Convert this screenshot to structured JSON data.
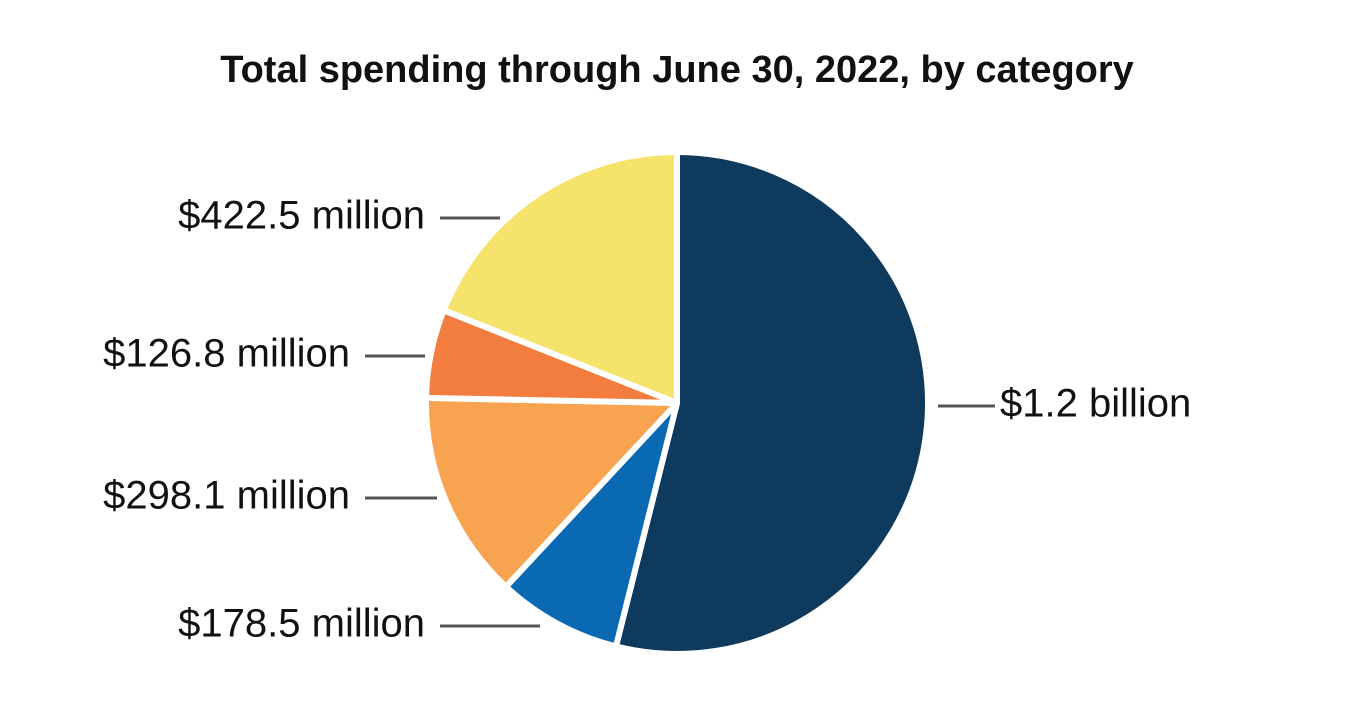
{
  "chart_data": {
    "type": "pie",
    "title": "Total spending through June 30, 2022, by category",
    "values": [
      1200000000,
      178500000,
      298100000,
      126800000,
      422500000
    ],
    "value_labels": [
      "$1.2 billion",
      "$178.5 million",
      "$298.1 million",
      "$126.8 million",
      "$422.5 million"
    ],
    "colors": [
      "#0e3a5e",
      "#0a69b3",
      "#f7a350",
      "#f37d3f",
      "#f5e36b"
    ]
  }
}
